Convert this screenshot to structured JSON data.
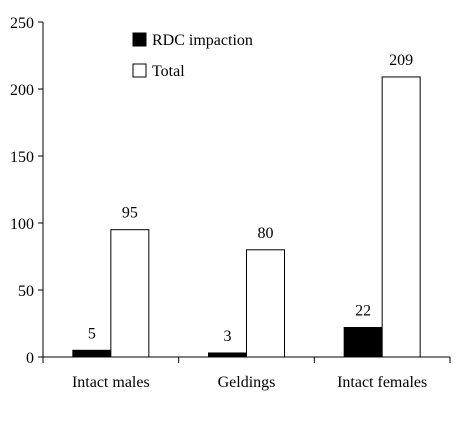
{
  "chart_data": {
    "type": "bar",
    "categories": [
      "Intact males",
      "Geldings",
      "Intact females"
    ],
    "series": [
      {
        "name": "RDC impaction",
        "values": [
          5,
          3,
          22
        ],
        "color": "#000000"
      },
      {
        "name": "Total",
        "values": [
          95,
          80,
          209
        ],
        "color": "#ffffff"
      }
    ],
    "ylim": [
      0,
      250
    ],
    "yticks": [
      0,
      50,
      100,
      150,
      200,
      250
    ],
    "legend_position": "top-left",
    "grid": false,
    "data_labels": true
  }
}
